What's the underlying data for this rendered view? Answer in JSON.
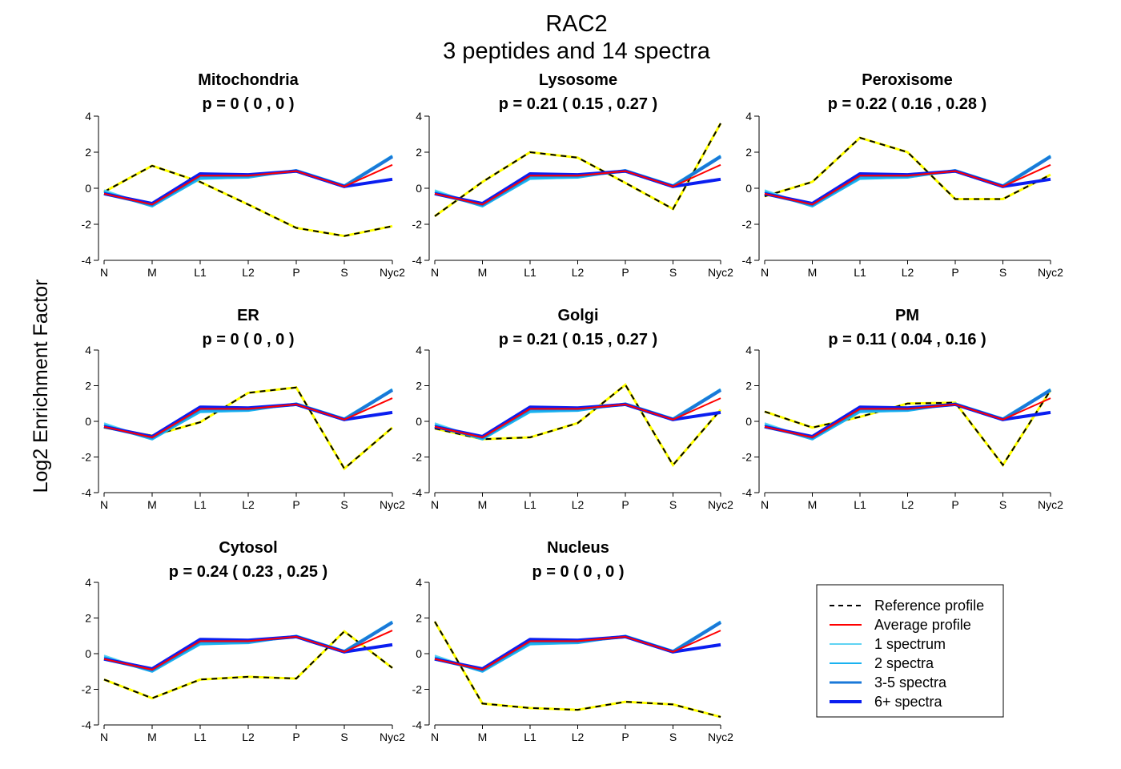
{
  "figure": {
    "title_line1": "RAC2",
    "title_line2": "3  peptides and  14  spectra",
    "ylabel": "Log2 Enrichment Factor"
  },
  "colors": {
    "reference_dash": "#000000",
    "reference_under": "#ffff00",
    "average": "#ff0000",
    "spectrum_1": "#5fd3f3",
    "spectra_2": "#1ab2f0",
    "spectra_3_5": "#1a78d8",
    "spectra_6plus": "#0a1ef0"
  },
  "legend": {
    "items": [
      {
        "label": "Reference profile",
        "key": "reference"
      },
      {
        "label": "Average profile",
        "key": "average"
      },
      {
        "label": "1 spectrum",
        "key": "s1"
      },
      {
        "label": "2 spectra",
        "key": "s2"
      },
      {
        "label": "3-5 spectra",
        "key": "s35"
      },
      {
        "label": "6+ spectra",
        "key": "s6"
      }
    ]
  },
  "chart_data": {
    "type": "line",
    "categories": [
      "N",
      "M",
      "L1",
      "L2",
      "P",
      "S",
      "Nyc2"
    ],
    "yticks": [
      "-4",
      "-2",
      "0",
      "2",
      "4"
    ],
    "ylim": [
      -4,
      4
    ],
    "grid": false,
    "legend_position": "bottom-right",
    "profiles": {
      "average": [
        -0.3,
        -0.9,
        0.7,
        0.7,
        0.95,
        0.1,
        1.3
      ],
      "s1": [
        -0.1,
        -1.0,
        0.5,
        0.6,
        1.0,
        0.15,
        1.8
      ],
      "s2": [
        -0.2,
        -1.0,
        0.55,
        0.6,
        1.0,
        0.15,
        1.8
      ],
      "s35": [
        -0.3,
        -0.9,
        0.7,
        0.7,
        0.95,
        0.1,
        1.75
      ],
      "s6": [
        -0.3,
        -0.85,
        0.8,
        0.75,
        0.95,
        0.1,
        0.5
      ]
    },
    "panels": [
      {
        "name": "Mitochondria",
        "p": "p =  0  ( 0 ,  0 )",
        "reference": [
          -0.2,
          1.25,
          0.35,
          -0.9,
          -2.2,
          -2.65,
          -2.1
        ]
      },
      {
        "name": "Lysosome",
        "p": "p =  0.21  ( 0.15 ,  0.27 )",
        "reference": [
          -1.55,
          0.35,
          2.0,
          1.7,
          0.3,
          -1.15,
          3.6
        ]
      },
      {
        "name": "Peroxisome",
        "p": "p =  0.22  ( 0.16 ,  0.28 )",
        "reference": [
          -0.45,
          0.35,
          2.8,
          2.0,
          -0.6,
          -0.6,
          0.75
        ]
      },
      {
        "name": "ER",
        "p": "p =  0  ( 0 ,  0 )",
        "reference": [
          -0.35,
          -0.8,
          -0.05,
          1.6,
          1.9,
          -2.65,
          -0.35
        ]
      },
      {
        "name": "Golgi",
        "p": "p =  0.21  ( 0.15 ,  0.27 )",
        "reference": [
          -0.4,
          -1.0,
          -0.9,
          -0.1,
          2.05,
          -2.45,
          0.65
        ]
      },
      {
        "name": "PM",
        "p": "p =  0.11  ( 0.04 ,  0.16 )",
        "reference": [
          0.55,
          -0.35,
          0.25,
          1.0,
          1.05,
          -2.45,
          1.75
        ]
      },
      {
        "name": "Cytosol",
        "p": "p =  0.24  ( 0.23 ,  0.25 )",
        "reference": [
          -1.45,
          -2.5,
          -1.45,
          -1.3,
          -1.4,
          1.25,
          -0.8
        ]
      },
      {
        "name": "Nucleus",
        "p": "p =  0  ( 0 ,  0 )",
        "reference": [
          1.8,
          -2.8,
          -3.05,
          -3.15,
          -2.7,
          -2.85,
          -3.55
        ]
      }
    ]
  }
}
